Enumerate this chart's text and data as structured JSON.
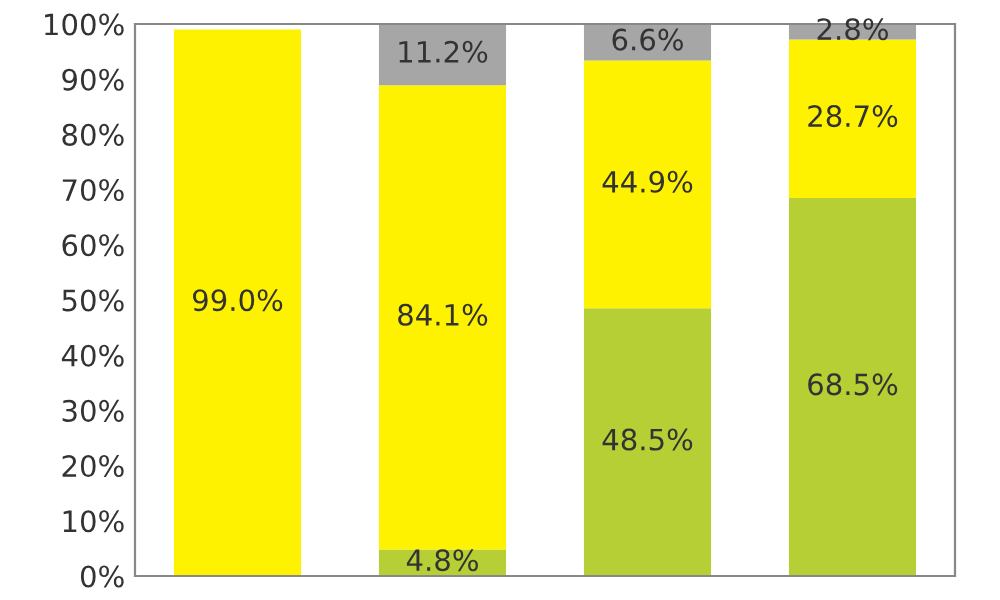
{
  "chart_data": {
    "type": "bar",
    "stacked": true,
    "categories": [
      null,
      null,
      null,
      null
    ],
    "series": [
      {
        "color": "#b5cf35",
        "values": [
          null,
          4.8,
          48.5,
          68.5
        ],
        "value_labels": [
          null,
          "4.8%",
          "48.5%",
          "68.5%"
        ]
      },
      {
        "color": "#fff200",
        "values": [
          99.0,
          84.1,
          44.9,
          28.7
        ],
        "value_labels": [
          "99.0%",
          "84.1%",
          "44.9%",
          "28.7%"
        ]
      },
      {
        "color": "#a6a6a6",
        "values": [
          null,
          11.2,
          6.6,
          2.8
        ],
        "value_labels": [
          null,
          "11.2%",
          "6.6%",
          "2.8%"
        ]
      }
    ],
    "ylim": [
      0,
      100
    ],
    "yticks": [
      {
        "value": 0,
        "label": "0%"
      },
      {
        "value": 10,
        "label": "10%"
      },
      {
        "value": 20,
        "label": "20%"
      },
      {
        "value": 30,
        "label": "30%"
      },
      {
        "value": 40,
        "label": "40%"
      },
      {
        "value": 50,
        "label": "50%"
      },
      {
        "value": 60,
        "label": "60%"
      },
      {
        "value": 70,
        "label": "70%"
      },
      {
        "value": 80,
        "label": "80%"
      },
      {
        "value": 90,
        "label": "90%"
      },
      {
        "value": 100,
        "label": "100%"
      }
    ],
    "grid": false
  }
}
